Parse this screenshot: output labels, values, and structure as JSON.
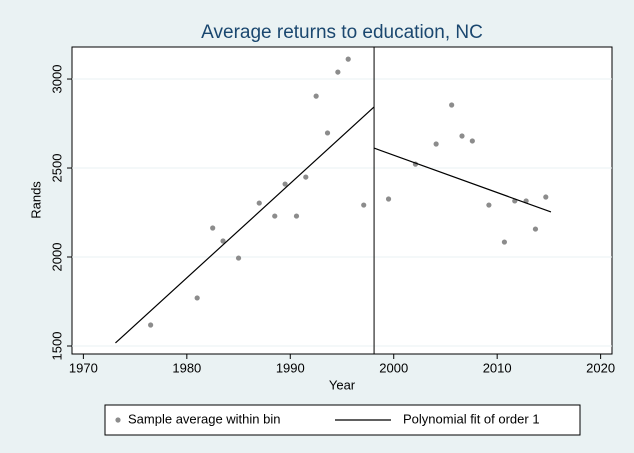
{
  "chart_data": {
    "type": "scatter",
    "title": "Average returns to education, NC",
    "x_label": "Year",
    "y_label": "Rands",
    "xlim": [
      1968.9,
      2021.1
    ],
    "ylim": [
      1455,
      3180
    ],
    "xticks": [
      1970,
      1980,
      1990,
      2000,
      2010,
      2020
    ],
    "yticks": [
      1500,
      2000,
      2500,
      3000
    ],
    "grid": true,
    "cutoff": 1998.1,
    "legend": "bottom",
    "series": [
      {
        "name": "Sample average within bin",
        "color": "#8c8c8c",
        "type": "scatter",
        "x": [
          1976.5,
          1981.0,
          1982.5,
          1983.5,
          1985.0,
          1987.0,
          1988.5,
          1989.5,
          1990.6,
          1991.5,
          1992.5,
          1993.6,
          1994.6,
          1995.6,
          1997.1,
          1999.5,
          2002.1,
          2004.1,
          2005.6,
          2006.6,
          2007.6,
          2009.2,
          2010.7,
          2011.7,
          2012.8,
          2013.7,
          2014.7
        ],
        "values": [
          1618,
          1770,
          2163,
          2090,
          1994,
          2303,
          2230,
          2410,
          2230,
          2449,
          2904,
          2697,
          3039,
          3112,
          2292,
          2326,
          2522,
          2635,
          2854,
          2680,
          2652,
          2292,
          2084,
          2315,
          2315,
          2157,
          2337
        ]
      },
      {
        "name": "Polynomial fit of order 1",
        "color": "#000000",
        "type": "line",
        "x": [
          1973.1,
          1998.1,
          null,
          1998.1,
          2015.2
        ],
        "values": [
          1517,
          2843,
          null,
          2612,
          2253
        ]
      }
    ]
  }
}
